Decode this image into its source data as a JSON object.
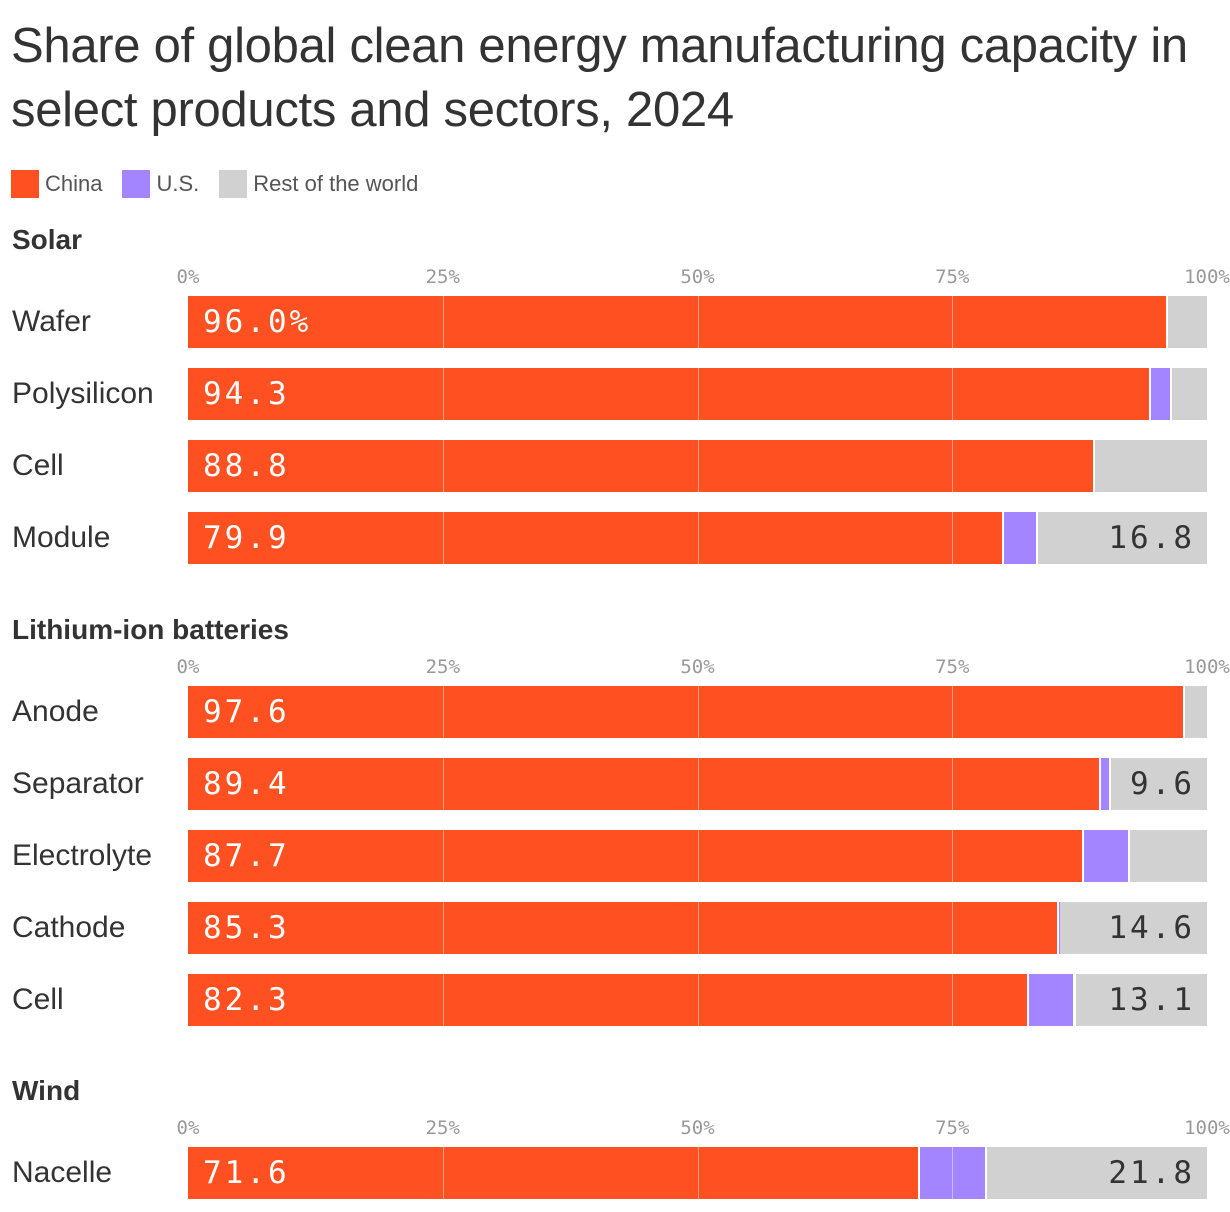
{
  "chart_data": {
    "type": "bar",
    "orientation": "horizontal",
    "stacked": true,
    "title": "Share of global clean energy manufacturing capacity in select products and sectors, 2024",
    "xlim": [
      0,
      100
    ],
    "tick_labels": [
      "0%",
      "25%",
      "50%",
      "75%",
      "100%"
    ],
    "legend": [
      {
        "name": "China",
        "color": "#ff5021"
      },
      {
        "name": "U.S.",
        "color": "#a385ff"
      },
      {
        "name": "Rest of the world",
        "color": "#d0d1d0"
      }
    ],
    "legend_placement": "top-left",
    "groups": [
      {
        "name": "Solar",
        "rows": [
          {
            "category": "Wafer",
            "china": 96.0,
            "us": 0,
            "rest": 4.0,
            "china_label": "96.0%",
            "rest_label": ""
          },
          {
            "category": "Polysilicon",
            "china": 94.3,
            "us": 2.1,
            "rest": 3.6,
            "china_label": "94.3",
            "rest_label": ""
          },
          {
            "category": "Cell",
            "china": 88.8,
            "us": 0,
            "rest": 11.2,
            "china_label": "88.8",
            "rest_label": ""
          },
          {
            "category": "Module",
            "china": 79.9,
            "us": 3.3,
            "rest": 16.8,
            "china_label": "79.9",
            "rest_label": "16.8"
          }
        ]
      },
      {
        "name": "Lithium-ion batteries",
        "rows": [
          {
            "category": "Anode",
            "china": 97.6,
            "us": 0,
            "rest": 2.4,
            "china_label": "97.6",
            "rest_label": ""
          },
          {
            "category": "Separator",
            "china": 89.4,
            "us": 1.0,
            "rest": 9.6,
            "china_label": "89.4",
            "rest_label": "9.6"
          },
          {
            "category": "Electrolyte",
            "china": 87.7,
            "us": 4.5,
            "rest": 7.8,
            "china_label": "87.7",
            "rest_label": ""
          },
          {
            "category": "Cathode",
            "china": 85.3,
            "us": 0.1,
            "rest": 14.6,
            "china_label": "85.3",
            "rest_label": "14.6"
          },
          {
            "category": "Cell",
            "china": 82.3,
            "us": 4.6,
            "rest": 13.1,
            "china_label": "82.3",
            "rest_label": "13.1"
          }
        ]
      },
      {
        "name": "Wind",
        "rows": [
          {
            "category": "Nacelle",
            "china": 71.6,
            "us": 6.6,
            "rest": 21.8,
            "china_label": "71.6",
            "rest_label": "21.8"
          }
        ]
      }
    ]
  }
}
